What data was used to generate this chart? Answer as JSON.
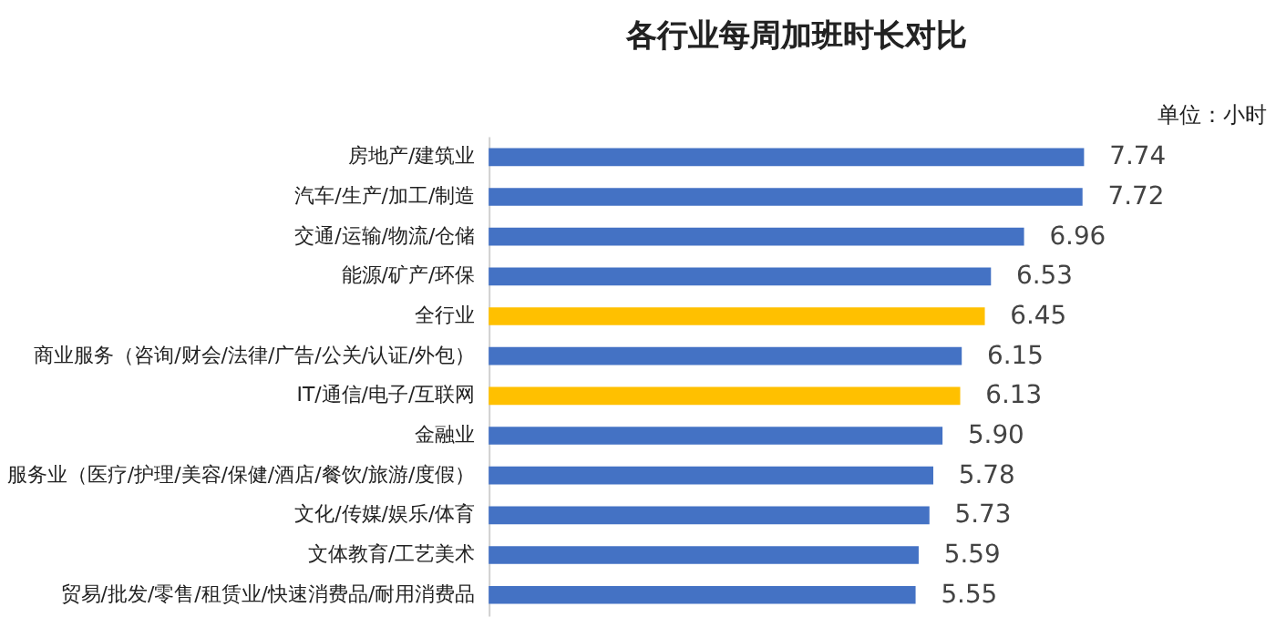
{
  "chart_data": {
    "type": "bar",
    "orientation": "horizontal",
    "title": "各行业每周加班时长对比",
    "annotations": [
      "单位：小时"
    ],
    "categories": [
      "房地产/建筑业",
      "汽车/生产/加工/制造",
      "交通/运输/物流/仓储",
      "能源/矿产/环保",
      "全行业",
      "商业服务（咨询/财会/法律/广告/公关/认证/外包）",
      "IT/通信/电子/互联网",
      "金融业",
      "服务业（医疗/护理/美容/保健/酒店/餐饮/旅游/度假）",
      "文化/传媒/娱乐/体育",
      "文体教育/工艺美术",
      "贸易/批发/零售/租赁业/快速消费品/耐用消费品"
    ],
    "values": [
      7.74,
      7.72,
      6.96,
      6.53,
      6.45,
      6.15,
      6.13,
      5.9,
      5.78,
      5.73,
      5.59,
      5.55
    ],
    "colors": [
      "#4472c4",
      "#4472c4",
      "#4472c4",
      "#4472c4",
      "#ffc000",
      "#4472c4",
      "#ffc000",
      "#4472c4",
      "#4472c4",
      "#4472c4",
      "#4472c4",
      "#4472c4"
    ],
    "value_labels": [
      "7.74",
      "7.72",
      "6.96",
      "6.53",
      "6.45",
      "6.15",
      "6.13",
      "5.90",
      "5.78",
      "5.73",
      "5.59",
      "5.55"
    ]
  }
}
